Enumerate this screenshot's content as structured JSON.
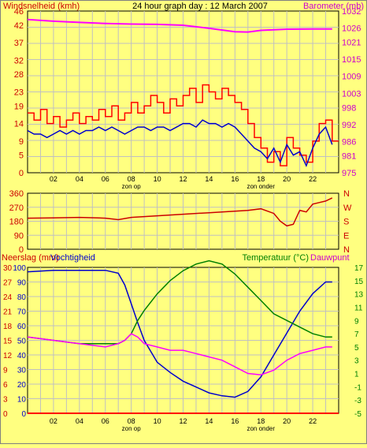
{
  "chart_data": [
    {
      "type": "line",
      "title": "24 hour graph day : 12 March 2007",
      "left_label": "Windsnelheid (kmh)",
      "right_label": "Barometer (mb)",
      "y_left_ticks": [
        0,
        5,
        9,
        14,
        19,
        23,
        28,
        32,
        37,
        42,
        46
      ],
      "y_left_lim": [
        0,
        46
      ],
      "y_right_ticks": [
        975,
        981,
        986,
        992,
        998,
        1003,
        1009,
        1015,
        1021,
        1026,
        1032
      ],
      "y_right_lim": [
        975,
        1032
      ],
      "x_ticks": [
        "02",
        "04",
        "06",
        "08",
        "10",
        "12",
        "14",
        "16",
        "18",
        "20",
        "22"
      ],
      "x_lim": [
        0,
        24
      ],
      "annotations": [
        "zon op",
        "zon onder"
      ],
      "series": [
        {
          "color": "#ff00ff",
          "axis": "right",
          "x": [
            0,
            2,
            4,
            6,
            8,
            10,
            12,
            14,
            16,
            17,
            18,
            20,
            22,
            23.5
          ],
          "y": [
            1029,
            1028.4,
            1028,
            1027.6,
            1027.4,
            1027.3,
            1027,
            1025.9,
            1024.7,
            1024.6,
            1025.2,
            1025.6,
            1025.7,
            1025.7
          ]
        },
        {
          "color": "#ff0000",
          "axis": "left",
          "x": [
            0,
            0.5,
            1,
            1.5,
            2,
            2.5,
            3,
            3.5,
            4,
            4.5,
            5,
            5.5,
            6,
            6.5,
            7,
            7.5,
            8,
            8.5,
            9,
            9.5,
            10,
            10.5,
            11,
            11.5,
            12,
            12.5,
            13,
            13.5,
            14,
            14.5,
            15,
            15.5,
            16,
            16.5,
            17,
            17.5,
            18,
            18.5,
            19,
            19.5,
            20,
            20.5,
            21,
            21.5,
            22,
            22.5,
            23,
            23.5
          ],
          "y": [
            17,
            15,
            18,
            14,
            16,
            13,
            15,
            17,
            14,
            16,
            15,
            18,
            16,
            19,
            15,
            17,
            20,
            17,
            19,
            22,
            20,
            17,
            21,
            19,
            22,
            24,
            20,
            25,
            23,
            21,
            24,
            22,
            20,
            18,
            14,
            10,
            7,
            3,
            6,
            2,
            10,
            7,
            5,
            3,
            9,
            14,
            15,
            9
          ]
        },
        {
          "color": "#0000cc",
          "axis": "left",
          "x": [
            0,
            0.5,
            1,
            1.5,
            2,
            2.5,
            3,
            3.5,
            4,
            4.5,
            5,
            5.5,
            6,
            6.5,
            7,
            7.5,
            8,
            8.5,
            9,
            9.5,
            10,
            10.5,
            11,
            11.5,
            12,
            12.5,
            13,
            13.5,
            14,
            14.5,
            15,
            15.5,
            16,
            16.5,
            17,
            17.5,
            18,
            18.5,
            19,
            19.5,
            20,
            20.5,
            21,
            21.5,
            22,
            22.5,
            23,
            23.5
          ],
          "y": [
            12,
            11,
            11,
            10,
            11,
            12,
            11,
            12,
            11,
            12,
            12,
            13,
            12,
            13,
            12,
            11,
            12,
            13,
            13,
            12,
            13,
            13,
            12,
            13,
            14,
            14,
            13,
            15,
            14,
            14,
            13,
            14,
            13,
            11,
            9,
            7,
            6,
            4,
            7,
            3,
            8,
            5,
            6,
            2,
            7,
            11,
            13,
            8
          ]
        }
      ]
    },
    {
      "type": "line",
      "y_left_ticks": [
        0,
        90,
        180,
        270,
        360
      ],
      "y_left_lim": [
        0,
        360
      ],
      "y_right_labels": [
        "N",
        "W",
        "S",
        "E",
        "N"
      ],
      "x_lim": [
        0,
        24
      ],
      "series": [
        {
          "color": "#cc0000",
          "x": [
            0,
            2,
            4,
            6,
            7,
            8,
            10,
            12,
            14,
            16,
            17,
            18,
            19,
            19.5,
            20,
            20.5,
            21,
            21.5,
            22,
            22.5,
            23,
            23.5
          ],
          "y": [
            200,
            202,
            205,
            200,
            190,
            205,
            215,
            225,
            235,
            245,
            250,
            260,
            230,
            180,
            150,
            160,
            250,
            240,
            290,
            300,
            310,
            330
          ]
        }
      ]
    },
    {
      "type": "line",
      "left_labels": [
        "Neerslag (mm)",
        "Vochtigheid"
      ],
      "right_labels": [
        "Temperatuur (°C)",
        "Dauwpunt"
      ],
      "y_left_ticks_humidity": [
        0,
        10,
        20,
        30,
        40,
        50,
        60,
        70,
        80,
        90,
        100
      ],
      "y_left_ticks_rain": [
        "0",
        "3",
        "6",
        "9",
        "12",
        "15",
        "18",
        "21",
        "24",
        "27",
        "30"
      ],
      "y_left_lim": [
        0,
        100
      ],
      "y_right_ticks": [
        -5,
        -3,
        -1,
        1,
        3,
        5,
        7,
        9,
        11,
        13,
        15,
        17
      ],
      "y_right_lim": [
        -5,
        17
      ],
      "x_ticks": [
        "02",
        "04",
        "06",
        "08",
        "10",
        "12",
        "14",
        "16",
        "18",
        "20",
        "22"
      ],
      "x_lim": [
        0,
        24
      ],
      "annotations": [
        "zon op",
        "zon onder"
      ],
      "series": [
        {
          "name": "Vochtigheid",
          "color": "#0000cc",
          "axis": "left",
          "x": [
            0,
            2,
            4,
            6,
            7,
            7.5,
            8,
            8.5,
            9,
            10,
            11,
            12,
            13,
            14,
            15,
            16,
            17,
            18,
            19,
            20,
            21,
            22,
            23,
            23.5
          ],
          "y": [
            97,
            98,
            98,
            98,
            96,
            88,
            75,
            62,
            50,
            35,
            28,
            22,
            18,
            14,
            12,
            11,
            15,
            25,
            40,
            55,
            70,
            82,
            90,
            90
          ]
        },
        {
          "name": "Temperatuur",
          "color": "#008000",
          "axis": "right",
          "x": [
            0,
            2,
            4,
            6,
            7,
            7.5,
            8,
            8.5,
            9,
            10,
            11,
            12,
            13,
            14,
            15,
            16,
            17,
            18,
            19,
            20,
            21,
            22,
            23,
            23.5
          ],
          "y": [
            6.5,
            6,
            5.5,
            5.5,
            5.5,
            6,
            7,
            9,
            10.5,
            13,
            15,
            16.5,
            17.5,
            18,
            17.5,
            16,
            14,
            12,
            10,
            9,
            8,
            7,
            6.5,
            6.5
          ]
        },
        {
          "name": "Dauwpunt",
          "color": "#ff00ff",
          "axis": "right",
          "x": [
            0,
            2,
            4,
            6,
            7,
            7.5,
            8,
            8.5,
            9,
            10,
            11,
            12,
            13,
            14,
            15,
            16,
            17,
            18,
            19,
            20,
            21,
            22,
            23,
            23.5
          ],
          "y": [
            6.5,
            6,
            5.5,
            5,
            5.5,
            6,
            7,
            6.5,
            5.5,
            5,
            4.5,
            4.5,
            4,
            3.5,
            3,
            2,
            1,
            0.8,
            1.5,
            3,
            4,
            4.5,
            5,
            5
          ]
        },
        {
          "name": "Neerslag",
          "color": "#ff0000",
          "axis": "left",
          "x": [
            0,
            24
          ],
          "y": [
            0,
            0
          ]
        }
      ]
    }
  ]
}
